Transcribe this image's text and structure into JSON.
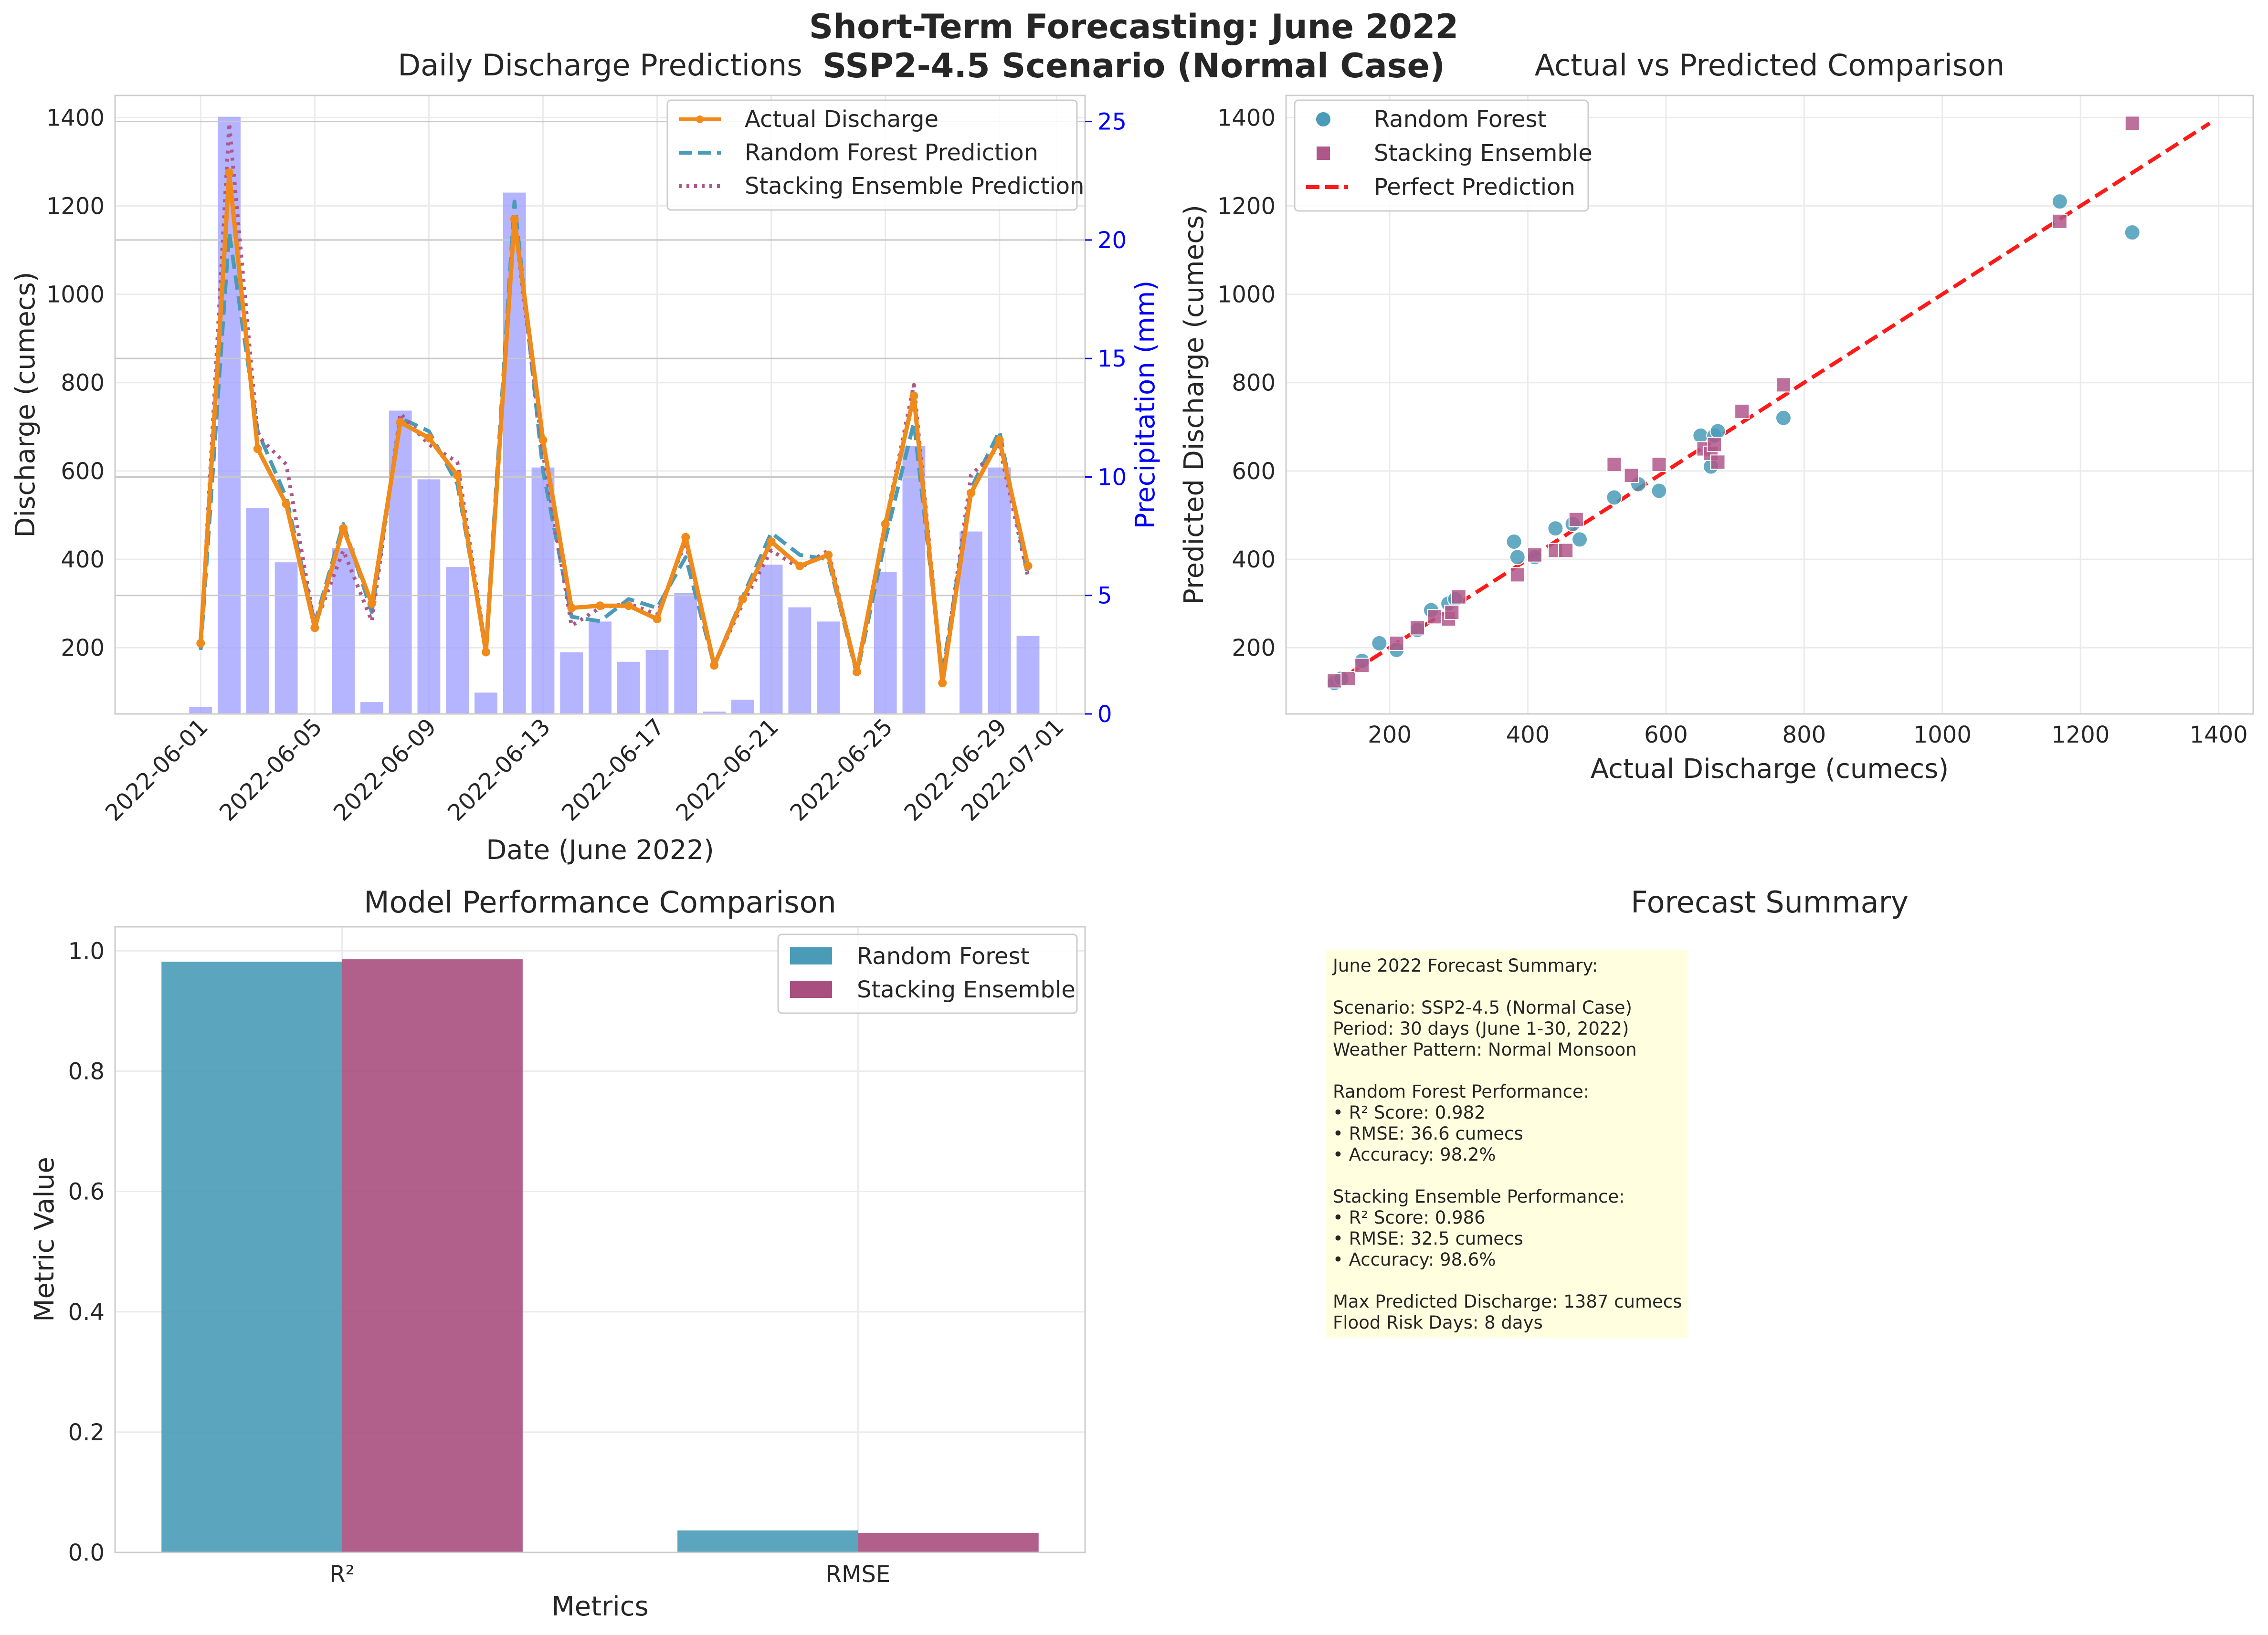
{
  "figure": {
    "title_line1": "Short-Term Forecasting: June 2022",
    "title_line2": "SSP2-4.5 Scenario (Normal Case)"
  },
  "colors": {
    "actual": "#f08a1a",
    "random_forest": "#4a9bb8",
    "stacking": "#b0578a",
    "precip": "#9b9bff",
    "perfect": "#ff1a1a",
    "rf_bar": "#4a9bb8",
    "st_bar": "#a84f80",
    "summary_bg": "#ffffe0"
  },
  "chart_data": [
    {
      "panel": "timeseries",
      "type": "line",
      "title": "Daily Discharge Predictions",
      "xlabel": "Date (June 2022)",
      "ylabel": "Discharge (cumecs)",
      "y2label": "Precipitation (mm)",
      "ylim": [
        50,
        1450
      ],
      "y2lim": [
        0,
        26.1
      ],
      "x_ticks": [
        "2022-06-01",
        "2022-06-05",
        "2022-06-09",
        "2022-06-13",
        "2022-06-17",
        "2022-06-21",
        "2022-06-25",
        "2022-06-29",
        "2022-07-01"
      ],
      "y_ticks": [
        200,
        400,
        600,
        800,
        1000,
        1200,
        1400
      ],
      "y2_ticks": [
        0,
        5,
        10,
        15,
        20,
        25
      ],
      "dates": [
        "2022-06-01",
        "2022-06-02",
        "2022-06-03",
        "2022-06-04",
        "2022-06-05",
        "2022-06-06",
        "2022-06-07",
        "2022-06-08",
        "2022-06-09",
        "2022-06-10",
        "2022-06-11",
        "2022-06-12",
        "2022-06-13",
        "2022-06-14",
        "2022-06-15",
        "2022-06-16",
        "2022-06-17",
        "2022-06-18",
        "2022-06-19",
        "2022-06-20",
        "2022-06-21",
        "2022-06-22",
        "2022-06-23",
        "2022-06-24",
        "2022-06-25",
        "2022-06-26",
        "2022-06-27",
        "2022-06-28",
        "2022-06-29",
        "2022-06-30"
      ],
      "precipitation": [
        0.3,
        25.2,
        8.7,
        6.4,
        0,
        7.0,
        0.5,
        12.8,
        9.9,
        6.2,
        0.9,
        22.0,
        10.4,
        2.6,
        3.9,
        2.2,
        2.7,
        5.1,
        0.1,
        0.6,
        6.3,
        4.5,
        3.9,
        0,
        6.0,
        11.3,
        0,
        7.7,
        10.4,
        3.3
      ],
      "series": [
        {
          "name": "Actual Discharge",
          "values": [
            210,
            1275,
            650,
            525,
            245,
            470,
            300,
            710,
            675,
            590,
            190,
            1170,
            670,
            290,
            295,
            295,
            265,
            450,
            160,
            310,
            440,
            385,
            410,
            145,
            480,
            770,
            120,
            550,
            670,
            385
          ]
        },
        {
          "name": "Random Forest Prediction",
          "values": [
            195,
            1140,
            690,
            540,
            255,
            480,
            280,
            720,
            690,
            570,
            200,
            1210,
            600,
            270,
            260,
            310,
            290,
            405,
            160,
            315,
            460,
            410,
            400,
            140,
            445,
            710,
            140,
            560,
            690,
            360
          ]
        },
        {
          "name": "Stacking Ensemble Prediction",
          "values": [
            200,
            1387,
            680,
            615,
            250,
            420,
            260,
            730,
            660,
            620,
            195,
            1165,
            640,
            250,
            290,
            300,
            275,
            440,
            160,
            300,
            420,
            380,
            420,
            145,
            480,
            795,
            125,
            590,
            655,
            360
          ]
        }
      ],
      "legend_position": "upper right"
    },
    {
      "panel": "scatter",
      "type": "scatter",
      "title": "Actual vs Predicted Comparison",
      "xlabel": "Actual Discharge (cumecs)",
      "ylabel": "Predicted Discharge (cumecs)",
      "xlim": [
        50,
        1450
      ],
      "ylim": [
        50,
        1450
      ],
      "x_ticks": [
        200,
        400,
        600,
        800,
        1000,
        1200,
        1400
      ],
      "y_ticks": [
        200,
        400,
        600,
        800,
        1000,
        1200,
        1400
      ],
      "series": [
        {
          "name": "Random Forest",
          "x": [
            120,
            130,
            160,
            185,
            210,
            240,
            260,
            285,
            295,
            380,
            385,
            410,
            440,
            465,
            475,
            525,
            560,
            590,
            650,
            665,
            670,
            675,
            770,
            1170,
            1275
          ],
          "y": [
            120,
            130,
            170,
            210,
            195,
            240,
            285,
            300,
            310,
            440,
            405,
            405,
            470,
            480,
            445,
            540,
            570,
            555,
            680,
            610,
            680,
            690,
            720,
            1210,
            1140
          ]
        },
        {
          "name": "Stacking Ensemble",
          "x": [
            120,
            140,
            160,
            210,
            240,
            265,
            285,
            290,
            300,
            385,
            410,
            440,
            455,
            470,
            525,
            550,
            590,
            655,
            665,
            670,
            675,
            710,
            770,
            1170,
            1275
          ],
          "y": [
            125,
            130,
            160,
            210,
            245,
            270,
            265,
            280,
            315,
            365,
            410,
            420,
            420,
            490,
            615,
            590,
            615,
            650,
            640,
            660,
            620,
            735,
            795,
            1165,
            1387
          ]
        }
      ],
      "perfect_line": {
        "name": "Perfect Prediction",
        "x": [
          120,
          1387
        ],
        "y": [
          120,
          1387
        ]
      },
      "legend_position": "upper left"
    },
    {
      "panel": "metrics",
      "type": "bar",
      "title": "Model Performance Comparison",
      "xlabel": "Metrics",
      "ylabel": "Metric Value",
      "ylim": [
        0,
        1.04
      ],
      "y_ticks": [
        0.0,
        0.2,
        0.4,
        0.6,
        0.8,
        1.0
      ],
      "y_tick_labels": [
        "0.0",
        "0.2",
        "0.4",
        "0.6",
        "0.8",
        "1.0"
      ],
      "categories": [
        "R²",
        "RMSE"
      ],
      "series": [
        {
          "name": "Random Forest",
          "values": [
            0.982,
            0.0366
          ]
        },
        {
          "name": "Stacking Ensemble",
          "values": [
            0.986,
            0.0325
          ]
        }
      ],
      "legend_position": "upper right"
    }
  ],
  "summary": {
    "title": "Forecast Summary",
    "lines": [
      "June 2022 Forecast Summary:",
      "",
      "Scenario: SSP2-4.5 (Normal Case)",
      "Period: 30 days (June 1-30, 2022)",
      "Weather Pattern: Normal Monsoon",
      "",
      "Random Forest Performance:",
      "• R² Score: 0.982",
      "• RMSE: 36.6 cumecs",
      "• Accuracy: 98.2%",
      "",
      "Stacking Ensemble Performance:",
      "• R² Score: 0.986",
      "• RMSE: 32.5 cumecs",
      "• Accuracy: 98.6%",
      "",
      "Max Predicted Discharge: 1387 cumecs",
      "Flood Risk Days: 8 days"
    ]
  }
}
